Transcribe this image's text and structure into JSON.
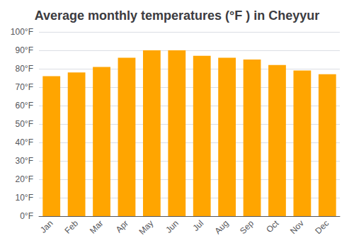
{
  "chart_data": {
    "type": "bar",
    "title": "Average monthly temperatures (°F ) in Cheyyur",
    "categories": [
      "Jan",
      "Feb",
      "Mar",
      "Apr",
      "May",
      "Jun",
      "Jul",
      "Aug",
      "Sep",
      "Oct",
      "Nov",
      "Dec"
    ],
    "values": [
      76,
      78,
      81,
      86,
      90,
      90,
      87,
      86,
      85,
      82,
      79,
      77
    ],
    "color": "#FFA500",
    "ylim": [
      0,
      100
    ],
    "yticks": [
      {
        "value": 0,
        "label": "0°F"
      },
      {
        "value": 10,
        "label": "10°F"
      },
      {
        "value": 20,
        "label": "20°F"
      },
      {
        "value": 30,
        "label": "30°F"
      },
      {
        "value": 40,
        "label": "40°F"
      },
      {
        "value": 50,
        "label": "50°F"
      },
      {
        "value": 60,
        "label": "60°F"
      },
      {
        "value": 70,
        "label": "70°F"
      },
      {
        "value": 80,
        "label": "80°F"
      },
      {
        "value": 90,
        "label": "90°F"
      },
      {
        "value": 100,
        "label": "100°F"
      }
    ],
    "grid": true
  }
}
